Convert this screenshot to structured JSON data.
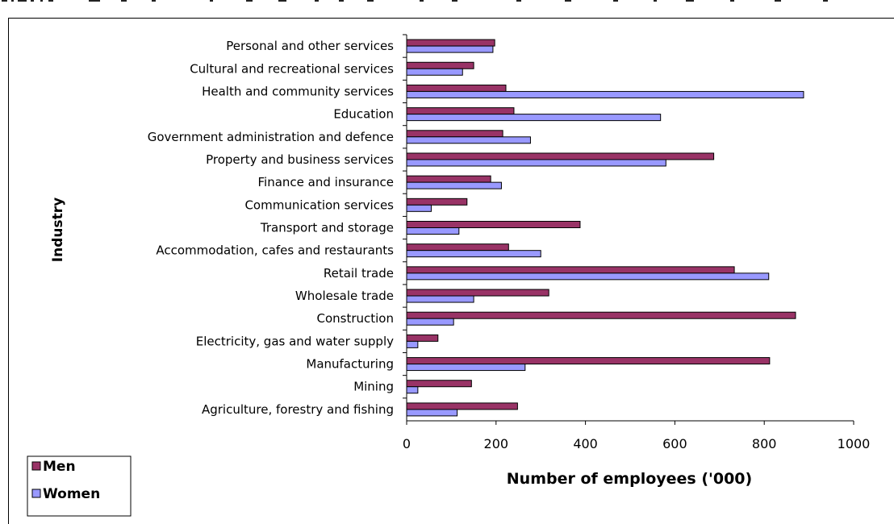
{
  "chart_data": {
    "type": "bar",
    "orientation": "horizontal",
    "categories": [
      "Agriculture, forestry and fishing",
      "Mining",
      "Manufacturing",
      "Electricity, gas and water supply",
      "Construction",
      "Wholesale trade",
      "Retail trade",
      "Accommodation, cafes and restaurants",
      "Transport and storage",
      "Communication services",
      "Finance and insurance",
      "Property and business services",
      "Government administration and defence",
      "Education",
      "Health and community services",
      "Cultural and recreational services",
      "Personal and other services"
    ],
    "series": [
      {
        "name": "Men",
        "color": "#993366",
        "values": [
          248,
          145,
          812,
          70,
          870,
          318,
          733,
          228,
          388,
          135,
          188,
          687,
          215,
          240,
          222,
          150,
          197
        ]
      },
      {
        "name": "Women",
        "color": "#9999ff",
        "values": [
          113,
          25,
          265,
          25,
          105,
          150,
          810,
          300,
          117,
          55,
          212,
          580,
          277,
          568,
          888,
          125,
          193
        ]
      }
    ],
    "xlabel": "Number of employees ('000)",
    "ylabel": "Industry",
    "xlim": [
      0,
      1000
    ],
    "xticks": [
      0,
      200,
      400,
      600,
      800,
      1000
    ],
    "grid": false,
    "legend_position": "bottom-left"
  }
}
